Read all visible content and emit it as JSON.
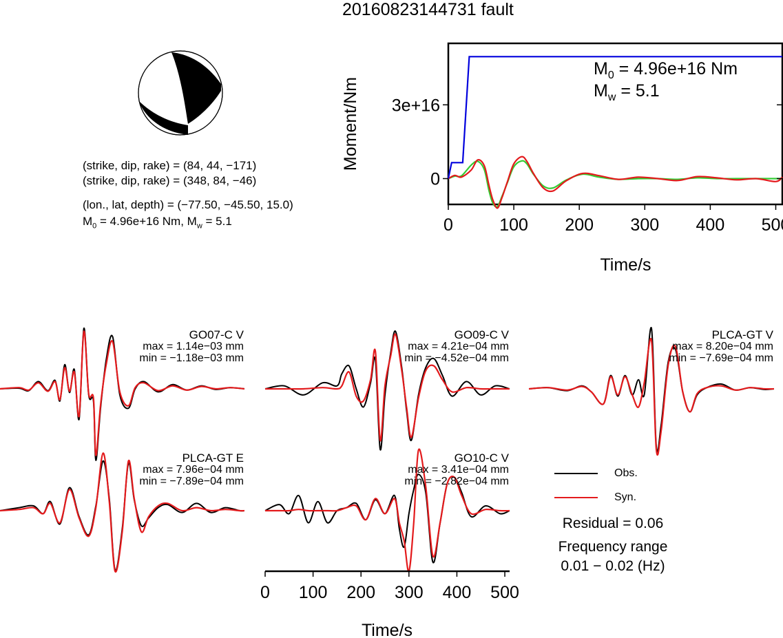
{
  "title": "20160823144731 fault",
  "mechanism": {
    "plane1": "(strike, dip, rake) = (84, 44, −171)",
    "plane2": "(strike, dip, rake) = (348, 84, −46)",
    "location": "(lon., lat, depth) = (−77.50, −45.50, 15.0)",
    "moment_summary_prefix": "M",
    "moment_summary_sub": "0",
    "moment_summary_rest": " = 4.96e+16 Nm, M",
    "moment_summary_sub2": "w",
    "moment_summary_tail": " = 5.1"
  },
  "moment_panel": {
    "m0_label": "M",
    "m0_sub": "0",
    "m0_value": " = 4.96e+16 Nm",
    "mw_label": "M",
    "mw_sub": "w",
    "mw_value": " = 5.1"
  },
  "waveforms": [
    {
      "station": "GO07-C V",
      "max": "max = 1.14e−03 mm",
      "min": "min = −1.18e−03 mm"
    },
    {
      "station": "GO09-C V",
      "max": "max = 4.21e−04 mm",
      "min": "min = −4.52e−04 mm"
    },
    {
      "station": "PLCA-GT V",
      "max": "max = 8.20e−04 mm",
      "min": "min = −7.69e−04 mm"
    },
    {
      "station": "PLCA-GT E",
      "max": "max = 7.96e−04 mm",
      "min": "min = −7.89e−04 mm"
    },
    {
      "station": "GO10-C V",
      "max": "max = 3.41e−04 mm",
      "min": "min = −2.82e−04 mm"
    }
  ],
  "legend": {
    "obs": "Obs.",
    "syn": "Syn."
  },
  "residual": "Residual = 0.06",
  "freq_label": "Frequency range",
  "freq_value": "0.01 − 0.02 (Hz)",
  "colors": {
    "obs": "#000000",
    "syn": "#e31a1c",
    "moment": "#0000dd",
    "green": "#33cc33"
  },
  "chart_data": [
    {
      "type": "line",
      "name": "moment-rate",
      "xlabel": "Time/s",
      "ylabel": "Moment/Nm",
      "xlim": [
        0,
        510
      ],
      "ylim": [
        -1.05e+16,
        5.5e+16
      ],
      "x_ticks": [
        0,
        100,
        200,
        300,
        400,
        500
      ],
      "y_ticks": [
        0,
        3e+16
      ],
      "y_tick_labels": [
        "0",
        "3e+16"
      ],
      "x_tick_labels": [
        "0",
        "100",
        "200",
        "300",
        "400",
        "500"
      ],
      "series": [
        {
          "kind": "cumulative-moment",
          "x": [
            0,
            5,
            22,
            32,
            60,
            510
          ],
          "y": [
            0,
            6500000000000000.0,
            6500000000000000.0,
            4.96e+16,
            4.96e+16,
            4.96e+16
          ]
        },
        {
          "kind": "obs-red",
          "x": [
            0,
            10,
            20,
            35,
            45,
            55,
            62,
            68,
            75,
            82,
            90,
            100,
            112,
            120,
            130,
            145,
            160,
            180,
            205,
            230,
            260,
            290,
            320,
            350,
            380,
            410,
            440,
            470,
            500,
            510
          ],
          "y": [
            0,
            1300000000000000.0,
            600000000000000.0,
            3500000000000000.0,
            7600000000000000.0,
            5200000000000000.0,
            -2700000000000000.0,
            -8700000000000000.0,
            -1.2e+16,
            -7700000000000000.0,
            -1500000000000000.0,
            6000000000000000.0,
            8900000000000000.0,
            7000000000000000.0,
            2100000000000000.0,
            -3800000000000000.0,
            -5000000000000000.0,
            -900000000000000.0,
            2100000000000000.0,
            1200000000000000.0,
            -300000000000000.0,
            600000000000000.0,
            0,
            -800000000000000.0,
            800000000000000.0,
            300000000000000.0,
            -500000000000000.0,
            0,
            -1200000000000000.0,
            600000000000000.0
          ]
        },
        {
          "kind": "syn-green",
          "x": [
            0,
            10,
            20,
            35,
            45,
            55,
            62,
            68,
            75,
            82,
            90,
            100,
            112,
            120,
            130,
            145,
            160,
            180,
            205,
            230,
            260,
            290,
            320,
            350,
            380,
            410,
            440,
            470,
            500,
            510
          ],
          "y": [
            0,
            1000000000000000.0,
            1100000000000000.0,
            5500000000000000.0,
            7000000000000000.0,
            3600000000000000.0,
            -4800000000000000.0,
            -1e+16,
            -1.14e+16,
            -7200000000000000.0,
            -1800000000000000.0,
            4800000000000000.0,
            7200000000000000.0,
            6000000000000000.0,
            1800000000000000.0,
            -3000000000000000.0,
            -3800000000000000.0,
            -600000000000000.0,
            1800000000000000.0,
            600000000000000.0,
            -300000000000000.0,
            0,
            0,
            -300000000000000.0,
            300000000000000.0,
            0,
            0,
            0,
            0,
            0
          ]
        }
      ]
    },
    {
      "type": "line",
      "name": "waveforms",
      "xlabel": "Time/s",
      "xlim": [
        0,
        510
      ],
      "x_ticks": [
        0,
        100,
        200,
        300,
        400,
        500
      ],
      "x_tick_labels": [
        "0",
        "100",
        "200",
        "300",
        "400",
        "500"
      ],
      "series": [
        {
          "station": "GO07-C V",
          "obs": {
            "x": [
              0,
              40,
              60,
              80,
              100,
              115,
              125,
              135,
              145,
              155,
              165,
              175,
              185,
              195,
              200,
              210,
              222,
              235,
              250,
              268,
              282,
              300,
              330,
              360,
              390,
              420,
              450,
              480,
              510
            ],
            "y": [
              0,
              0.01,
              -0.03,
              0.12,
              -0.03,
              0.14,
              -0.2,
              0.4,
              -0.06,
              0.32,
              -0.5,
              1.0,
              -0.1,
              -0.2,
              -1.18,
              -0.3,
              0.5,
              0.86,
              -0.1,
              -0.32,
              0.0,
              0.12,
              -0.05,
              0.07,
              -0.02,
              0.05,
              -0.01,
              0.02,
              0
            ]
          },
          "syn": {
            "x": [
              0,
              40,
              60,
              80,
              100,
              115,
              125,
              135,
              145,
              155,
              165,
              175,
              185,
              195,
              200,
              210,
              222,
              235,
              250,
              268,
              282,
              300,
              330,
              360,
              390,
              420,
              450,
              480,
              510
            ],
            "y": [
              0,
              0.02,
              -0.02,
              0.1,
              -0.04,
              0.12,
              -0.18,
              0.35,
              -0.04,
              0.28,
              -0.45,
              0.95,
              -0.08,
              -0.15,
              -1.1,
              -0.25,
              0.42,
              0.78,
              -0.05,
              -0.28,
              0.02,
              0.1,
              -0.03,
              0.05,
              -0.02,
              0.04,
              0,
              0.02,
              0
            ]
          }
        },
        {
          "station": "GO09-C V",
          "obs": {
            "x": [
              0,
              40,
              80,
              120,
              150,
              160,
              175,
              190,
              205,
              220,
              230,
              240,
              250,
              262,
              272,
              285,
              295,
              305,
              320,
              335,
              352,
              370,
              390,
              420,
              450,
              480,
              510
            ],
            "y": [
              0,
              0.05,
              -0.1,
              0.1,
              0.05,
              0.25,
              0.38,
              0.0,
              -0.3,
              0.1,
              0.48,
              -1.0,
              -0.1,
              0.6,
              0.95,
              0.35,
              -0.35,
              -0.85,
              -0.1,
              0.35,
              0.5,
              0.22,
              -0.12,
              0.12,
              -0.1,
              0.05,
              0
            ]
          },
          "syn": {
            "x": [
              0,
              40,
              80,
              120,
              150,
              160,
              175,
              190,
              205,
              220,
              230,
              240,
              250,
              262,
              272,
              285,
              295,
              305,
              320,
              335,
              352,
              370,
              390,
              420,
              450,
              480,
              510
            ],
            "y": [
              0,
              0.0,
              0.0,
              0.02,
              0.0,
              0.05,
              0.28,
              -0.12,
              -0.2,
              0.15,
              0.62,
              -0.85,
              0.05,
              0.55,
              0.9,
              0.3,
              -0.3,
              -0.8,
              -0.15,
              0.3,
              0.38,
              0.15,
              -0.05,
              0.02,
              0,
              0,
              0
            ]
          }
        },
        {
          "station": "PLCA-GT V",
          "obs": {
            "x": [
              0,
              40,
              80,
              110,
              130,
              155,
              170,
              185,
              200,
              215,
              228,
              240,
              255,
              265,
              275,
              290,
              305,
              320,
              335,
              350,
              370,
              400,
              430,
              460,
              490,
              510
            ],
            "y": [
              0,
              0.02,
              -0.03,
              0.05,
              -0.05,
              -0.25,
              0.22,
              -0.12,
              0.22,
              -0.1,
              0.15,
              -0.1,
              1.0,
              -0.95,
              -0.6,
              0.45,
              0.65,
              -0.05,
              -0.38,
              -0.1,
              0.02,
              0.08,
              -0.02,
              0.02,
              -0.01,
              0
            ]
          },
          "syn": {
            "x": [
              0,
              40,
              80,
              110,
              130,
              155,
              170,
              185,
              200,
              215,
              228,
              240,
              255,
              265,
              275,
              290,
              305,
              320,
              335,
              350,
              370,
              400,
              430,
              460,
              490,
              510
            ],
            "y": [
              0,
              0.02,
              -0.02,
              0.04,
              -0.05,
              -0.25,
              0.2,
              -0.1,
              0.2,
              -0.1,
              -0.3,
              0.1,
              0.8,
              -1.0,
              -0.7,
              0.4,
              0.7,
              -0.05,
              -0.38,
              -0.08,
              0.02,
              0.05,
              -0.02,
              0.02,
              0,
              0
            ]
          }
        },
        {
          "station": "PLCA-GT E",
          "obs": {
            "x": [
              0,
              40,
              70,
              90,
              105,
              125,
              145,
              165,
              185,
              200,
              215,
              228,
              240,
              255,
              268,
              280,
              295,
              310,
              330,
              350,
              380,
              410,
              440,
              470,
              500,
              510
            ],
            "y": [
              0,
              0.05,
              0.08,
              -0.05,
              0.15,
              -0.22,
              0.38,
              -0.1,
              -0.4,
              0.08,
              0.82,
              0.2,
              -0.98,
              -0.3,
              0.78,
              0.18,
              -0.25,
              -0.12,
              0.05,
              0.1,
              -0.03,
              0.12,
              -0.03,
              0.05,
              0,
              0
            ]
          },
          "syn": {
            "x": [
              0,
              40,
              70,
              90,
              105,
              125,
              145,
              165,
              185,
              200,
              215,
              228,
              240,
              255,
              268,
              280,
              295,
              310,
              330,
              350,
              380,
              410,
              440,
              470,
              500,
              510
            ],
            "y": [
              0,
              0.02,
              0.05,
              -0.05,
              0.12,
              -0.2,
              0.35,
              -0.12,
              -0.42,
              0.05,
              0.95,
              0.15,
              -1.0,
              -0.35,
              0.82,
              0.2,
              -0.35,
              -0.1,
              0.08,
              0.12,
              0.0,
              0.05,
              0.0,
              0.02,
              0,
              0
            ]
          }
        },
        {
          "station": "GO10-C V",
          "obs": {
            "x": [
              0,
              30,
              50,
              70,
              90,
              110,
              130,
              150,
              170,
              190,
              210,
              230,
              250,
              270,
              280,
              290,
              300,
              310,
              320,
              335,
              350,
              365,
              380,
              395,
              410,
              430,
              460,
              490,
              510
            ],
            "y": [
              0,
              0.1,
              -0.05,
              0.25,
              -0.2,
              0.15,
              -0.2,
              0.0,
              0.05,
              0.12,
              -0.15,
              0.18,
              -0.05,
              0.25,
              -0.3,
              -0.6,
              -0.05,
              0.35,
              0.6,
              0.3,
              -0.85,
              -0.2,
              0.45,
              0.55,
              0.3,
              -0.1,
              0.08,
              -0.05,
              0
            ]
          },
          "syn": {
            "x": [
              0,
              30,
              50,
              70,
              90,
              110,
              130,
              150,
              170,
              190,
              210,
              230,
              250,
              270,
              280,
              290,
              300,
              310,
              320,
              335,
              350,
              365,
              380,
              395,
              410,
              430,
              460,
              490,
              510
            ],
            "y": [
              0,
              0.0,
              0.0,
              0.02,
              0.0,
              0.0,
              0.0,
              0.0,
              0.05,
              0.08,
              -0.15,
              0.2,
              -0.05,
              0.2,
              -0.2,
              -0.5,
              -1.0,
              -0.2,
              1.0,
              0.4,
              -0.75,
              -0.2,
              0.45,
              0.55,
              0.25,
              -0.05,
              0.02,
              0,
              0
            ]
          }
        }
      ]
    }
  ]
}
